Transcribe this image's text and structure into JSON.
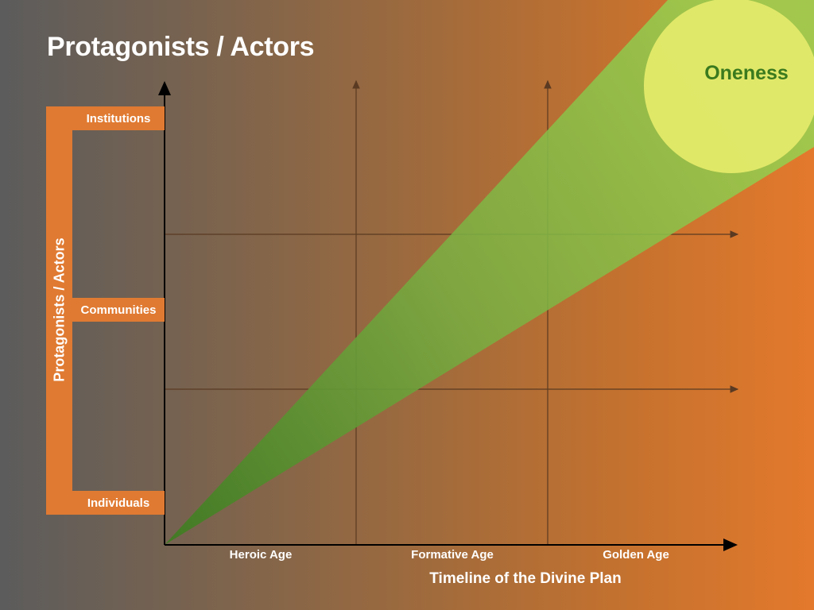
{
  "title": "Protagonists / Actors",
  "y_axis": {
    "label": "Protagonists / Actors",
    "levels": [
      "Institutions",
      "Communities",
      "Individuals"
    ]
  },
  "x_axis": {
    "label": "Timeline of the Divine Plan",
    "ages": [
      "Heroic Age",
      "Formative Age",
      "Golden Age"
    ]
  },
  "goal_label": "Oneness",
  "colors": {
    "bracket": "#e07a32",
    "beam": "#8bc34a",
    "sun": "#e4ea6a",
    "goal_text": "#3a7a1e",
    "axis": "#000000",
    "grid": "#5a3a22"
  }
}
